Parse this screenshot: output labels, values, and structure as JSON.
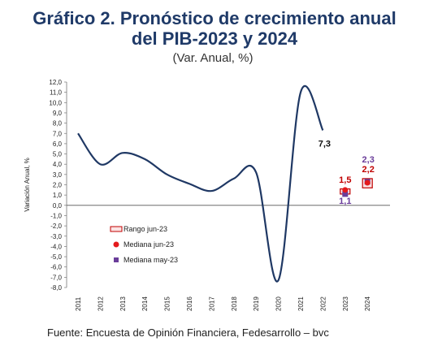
{
  "title_line1": "Gráfico 2. Pronóstico de crecimiento anual",
  "title_line2": "del PIB-2023 y 2024",
  "subtitle": "(Var. Anual, %)",
  "source": "Fuente: Encuesta de Opinión Financiera, Fedesarrollo – bvc",
  "colors": {
    "title": "#1f3a68",
    "line": "#1f3864",
    "range": "#c00000",
    "median_jun": "#e41a1c",
    "median_may": "#6a3d9a",
    "label_jun": "#c00000",
    "label_may": "#6a3d9a"
  },
  "chart_data": {
    "type": "line",
    "ylabel": "Variación Anual, %",
    "ylim": [
      -8.0,
      12.0
    ],
    "yticks": [
      "12,0",
      "11,0",
      "10,0",
      "9,0",
      "8,0",
      "7,0",
      "6,0",
      "5,0",
      "4,0",
      "3,0",
      "2,0",
      "1,0",
      "0,0",
      "-1,0",
      "-2,0",
      "-3,0",
      "-4,0",
      "-5,0",
      "-6,0",
      "-7,0",
      "-8,0"
    ],
    "categories": [
      "2011",
      "2012",
      "2013",
      "2014",
      "2015",
      "2016",
      "2017",
      "2018",
      "2019",
      "2020",
      "2021",
      "2022",
      "2023",
      "2024"
    ],
    "series": [
      {
        "values": [
          7.0,
          4.0,
          5.1,
          4.5,
          3.0,
          2.1,
          1.4,
          2.6,
          3.2,
          -7.3,
          11.0,
          7.3,
          null,
          null
        ]
      }
    ],
    "end_label": "7,3",
    "range_jun23": [
      {
        "x": "2023",
        "low": 1.1,
        "high": 1.6
      },
      {
        "x": "2024",
        "low": 1.7,
        "high": 2.6
      }
    ],
    "median_jun23": [
      {
        "x": "2023",
        "value": 1.5,
        "label": "1,5"
      },
      {
        "x": "2024",
        "value": 2.2,
        "label": "2,2"
      }
    ],
    "median_may23": [
      {
        "x": "2023",
        "value": 1.1,
        "label": "1,1"
      },
      {
        "x": "2024",
        "value": 2.3,
        "label": "2,3"
      }
    ],
    "legend": [
      "Rango jun-23",
      "Mediana jun-23",
      "Mediana may-23"
    ]
  }
}
